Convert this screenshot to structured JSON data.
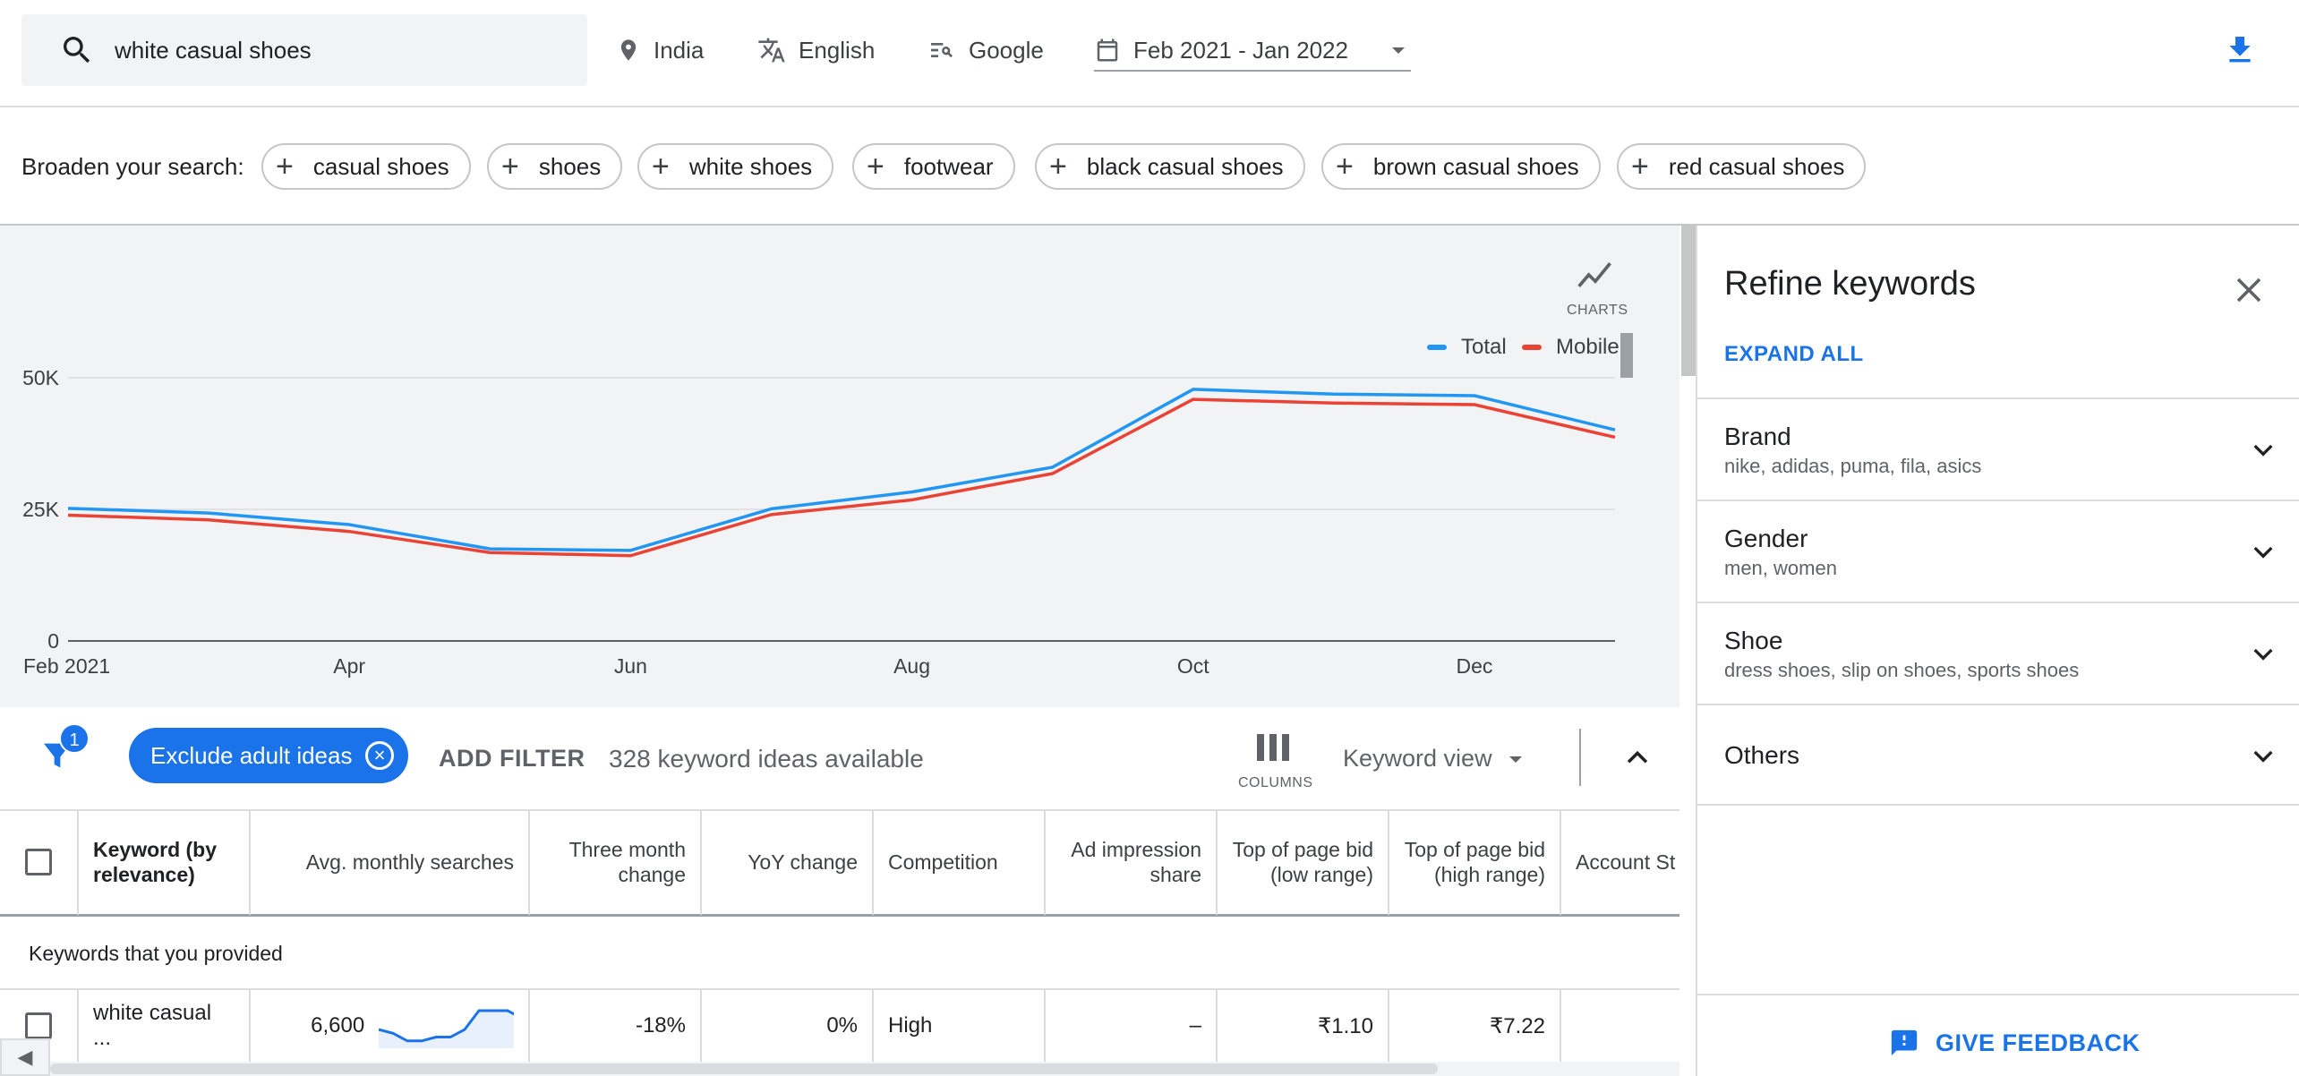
{
  "search": {
    "query": "white casual shoes"
  },
  "controls": {
    "location": "India",
    "language": "English",
    "network": "Google",
    "date_range": "Feb 2021 - Jan 2022"
  },
  "broaden": {
    "label": "Broaden your search:",
    "chips": [
      "casual shoes",
      "shoes",
      "white shoes",
      "footwear",
      "black casual shoes",
      "brown casual shoes",
      "red casual shoes"
    ]
  },
  "chart_toggle": {
    "label": "CHARTS"
  },
  "chart_data": {
    "type": "line",
    "x": [
      "Feb 2021",
      "Mar 2021",
      "Apr 2021",
      "May 2021",
      "Jun 2021",
      "Jul 2021",
      "Aug 2021",
      "Sep 2021",
      "Oct 2021",
      "Nov 2021",
      "Dec 2021",
      "Jan 2022"
    ],
    "xticks": [
      "Feb 2021",
      "Apr",
      "Jun",
      "Aug",
      "Oct",
      "Dec"
    ],
    "yticks": [
      "0",
      "25K",
      "50K"
    ],
    "ylim": [
      0,
      50000
    ],
    "grid": true,
    "legend_position": "top-right",
    "series": [
      {
        "name": "Total",
        "color": "#2196f3",
        "values": [
          25200,
          24300,
          22100,
          17500,
          17200,
          25100,
          28300,
          33000,
          47800,
          46900,
          46600,
          40100
        ]
      },
      {
        "name": "Mobile",
        "color": "#ea4335",
        "values": [
          23900,
          23000,
          20800,
          16800,
          16200,
          24000,
          26800,
          31800,
          45900,
          45200,
          44900,
          38700
        ]
      }
    ]
  },
  "filters": {
    "badge_count": "1",
    "exclude_chip": "Exclude adult ideas",
    "add_filter": "ADD FILTER",
    "count_text": "328 keyword ideas available",
    "columns_label": "COLUMNS",
    "view_label": "Keyword view"
  },
  "table": {
    "headers": {
      "keyword": "Keyword (by relevance)",
      "avg": "Avg. monthly searches",
      "three_month": "Three month change",
      "yoy": "YoY change",
      "competition": "Competition",
      "ad_share": "Ad impression share",
      "bid_low": "Top of page bid (low range)",
      "bid_high": "Top of page bid (high range)",
      "account": "Account St"
    },
    "section_label": "Keywords that you provided",
    "rows": [
      {
        "keyword": "white casual ...",
        "avg": "6,600",
        "spark": [
          4,
          3,
          1,
          1,
          2,
          2,
          4,
          9,
          9,
          9,
          7
        ],
        "three_month": "-18%",
        "yoy": "0%",
        "competition": "High",
        "ad_share": "–",
        "bid_low": "₹1.10",
        "bid_high": "₹7.22"
      }
    ]
  },
  "refine": {
    "title": "Refine keywords",
    "expand_all": "EXPAND ALL",
    "groups": [
      {
        "name": "Brand",
        "sub": "nike, adidas, puma, fila, asics"
      },
      {
        "name": "Gender",
        "sub": "men, women"
      },
      {
        "name": "Shoe",
        "sub": "dress shoes, slip on shoes, sports shoes"
      },
      {
        "name": "Others",
        "sub": ""
      }
    ],
    "feedback": "GIVE FEEDBACK"
  },
  "colors": {
    "accent": "#1a73e8",
    "total_line": "#2196f3",
    "mobile_line": "#ea4335"
  }
}
